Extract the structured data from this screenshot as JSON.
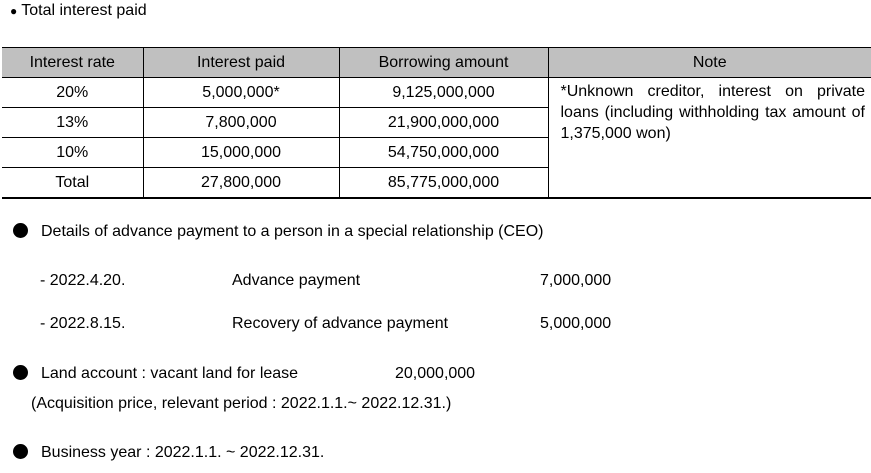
{
  "header": {
    "bullet": "●",
    "title": "Total interest paid"
  },
  "interest_table": {
    "columns": [
      "Interest rate",
      "Interest paid",
      "Borrowing amount",
      "Note"
    ],
    "rows": [
      [
        "20%",
        "5,000,000*",
        "9,125,000,000"
      ],
      [
        "13%",
        "7,800,000",
        "21,900,000,000"
      ],
      [
        "10%",
        "15,000,000",
        "54,750,000,000"
      ],
      [
        "Total",
        "27,800,000",
        "85,775,000,000"
      ]
    ],
    "note": "*Unknown creditor, interest on private loans (including withholding tax amount of 1,375,000 won)"
  },
  "advance": {
    "title": "Details of advance payment to a person in a special relationship (CEO)",
    "items": [
      {
        "date": "- 2022.4.20.",
        "label": "Advance payment",
        "amount": "7,000,000"
      },
      {
        "date": "- 2022.8.15.",
        "label": "Recovery of advance payment",
        "amount": "5,000,000"
      }
    ]
  },
  "land": {
    "title": "Land account : vacant land for lease",
    "amount": "20,000,000",
    "detail": "(Acquisition price, relevant period : 2022.1.1.~ 2022.12.31.)"
  },
  "business_year": {
    "title": "Business year : 2022.1.1. ~ 2022.12.31."
  }
}
